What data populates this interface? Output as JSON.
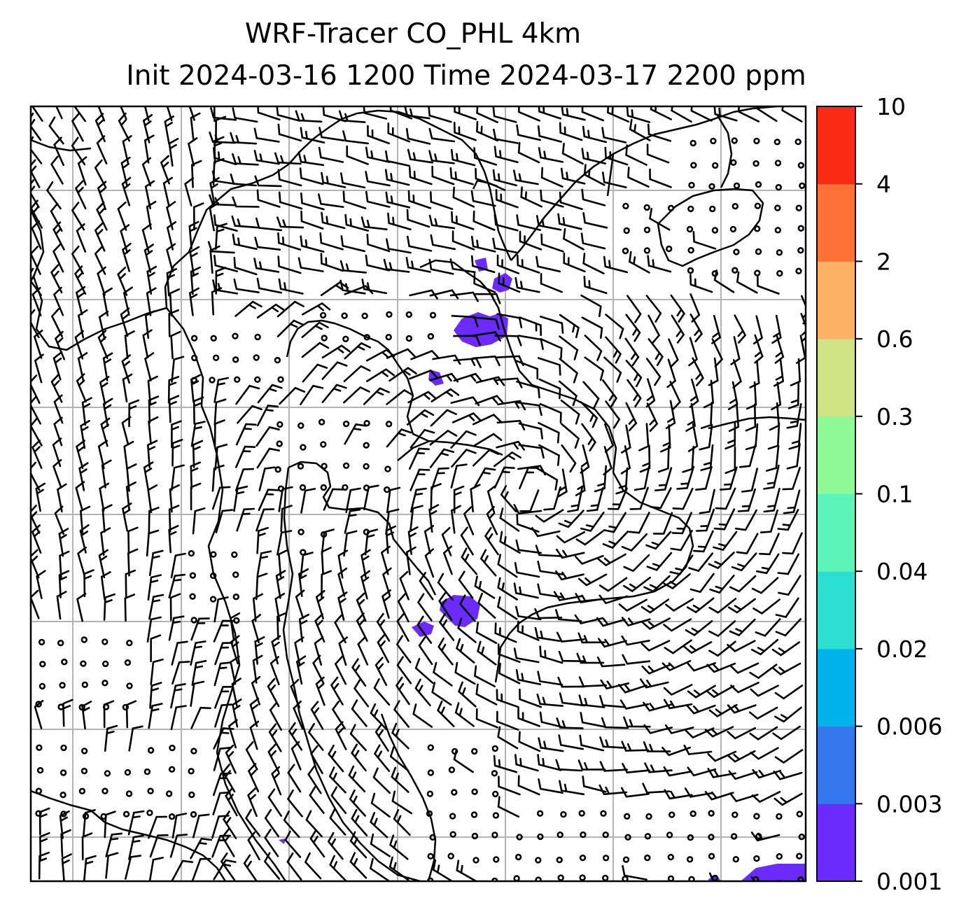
{
  "title": {
    "line1": "WRF-Tracer CO_PHL 4km",
    "line2": "Init 2024-03-16 1200 Time 2024-03-17 2200 ppm"
  },
  "colorbar": {
    "levels": [
      "0.001",
      "0.003",
      "0.006",
      "0.02",
      "0.04",
      "0.1",
      "0.3",
      "0.6",
      "2",
      "4",
      "10"
    ],
    "colors": [
      "#6a2bfc",
      "#3578ee",
      "#00b2ea",
      "#2ddfd0",
      "#5cf4b8",
      "#8ef996",
      "#d0e384",
      "#fdb164",
      "#fe7237",
      "#fb2a14"
    ]
  },
  "map": {
    "field": "CO_PHL tracer",
    "units": "ppm",
    "grid": true,
    "wind_barbs": true,
    "colors": {
      "land_outline": "#000000",
      "gridline": "#b3b3b3",
      "tracer_fill": "#6a2bfc"
    }
  }
}
